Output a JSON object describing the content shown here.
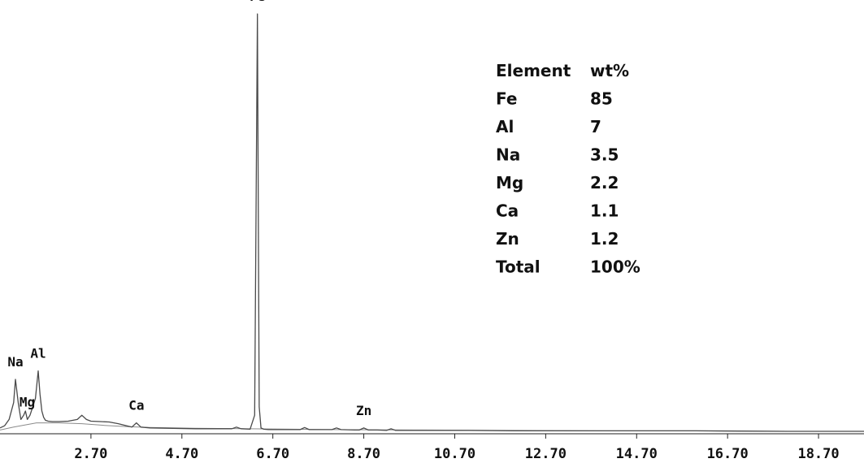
{
  "chart_data": {
    "type": "line",
    "title": "",
    "xlabel": "",
    "ylabel": "",
    "xlim": [
      0.7,
      19.7
    ],
    "ylim": [
      0,
      1
    ],
    "grid": false,
    "legend": "none",
    "x_ticks": [
      "2.70",
      "4.70",
      "6.70",
      "8.70",
      "10.70",
      "12.70",
      "14.70",
      "16.70",
      "18.70"
    ],
    "series": [
      {
        "color": "#4a4a4a",
        "x": [
          0.7,
          0.8,
          0.9,
          1.0,
          1.04,
          1.1,
          1.16,
          1.22,
          1.26,
          1.3,
          1.36,
          1.42,
          1.48,
          1.54,
          1.58,
          1.62,
          1.66,
          1.7,
          1.76,
          1.85,
          2.0,
          2.2,
          2.4,
          2.5,
          2.6,
          2.7,
          2.9,
          3.1,
          3.3,
          3.6,
          3.7,
          3.8,
          4.0,
          4.5,
          5.0,
          5.5,
          5.8,
          5.9,
          6.0,
          6.2,
          6.3,
          6.36,
          6.4,
          6.44,
          6.5,
          6.6,
          7.0,
          7.3,
          7.4,
          7.5,
          8.0,
          8.1,
          8.2,
          8.5,
          8.6,
          8.7,
          8.8,
          9.0,
          9.2,
          9.3,
          9.4,
          10.0,
          11.0,
          12.0,
          14.0,
          16.0,
          18.0,
          19.7
        ],
        "y": [
          0.01,
          0.015,
          0.03,
          0.07,
          0.125,
          0.07,
          0.03,
          0.04,
          0.05,
          0.03,
          0.04,
          0.06,
          0.08,
          0.145,
          0.09,
          0.05,
          0.035,
          0.028,
          0.026,
          0.025,
          0.025,
          0.026,
          0.03,
          0.04,
          0.03,
          0.026,
          0.025,
          0.024,
          0.02,
          0.012,
          0.022,
          0.012,
          0.01,
          0.009,
          0.008,
          0.008,
          0.008,
          0.012,
          0.008,
          0.007,
          0.04,
          0.99,
          0.06,
          0.01,
          0.007,
          0.006,
          0.006,
          0.006,
          0.011,
          0.006,
          0.006,
          0.01,
          0.006,
          0.005,
          0.005,
          0.01,
          0.005,
          0.005,
          0.004,
          0.008,
          0.004,
          0.004,
          0.004,
          0.003,
          0.003,
          0.003,
          0.002,
          0.002
        ]
      }
    ],
    "background_curve": {
      "color": "#8a8a8a",
      "x": [
        0.7,
        1.0,
        1.5,
        2.0,
        2.5,
        3.0,
        3.5,
        4.0,
        5.0,
        6.0,
        8.0,
        10.0,
        12.0,
        14.0,
        16.0,
        18.0,
        19.7
      ],
      "y": [
        0.005,
        0.012,
        0.022,
        0.022,
        0.02,
        0.016,
        0.013,
        0.011,
        0.009,
        0.008,
        0.006,
        0.005,
        0.004,
        0.003,
        0.003,
        0.002,
        0.002
      ]
    },
    "peak_labels": [
      {
        "text": "Na",
        "x": 1.04,
        "y": 0.125
      },
      {
        "text": "Mg",
        "x": 1.3,
        "y": 0.03
      },
      {
        "text": "Al",
        "x": 1.54,
        "y": 0.145
      },
      {
        "text": "Ca",
        "x": 3.7,
        "y": 0.022
      },
      {
        "text": "Fe",
        "x": 6.36,
        "y": 0.99
      },
      {
        "text": "Zn",
        "x": 8.7,
        "y": 0.01
      }
    ],
    "table": {
      "header": [
        "Element",
        "wt%"
      ],
      "rows": [
        [
          "Fe",
          "85"
        ],
        [
          "Al",
          "7"
        ],
        [
          "Na",
          "3.5"
        ],
        [
          "Mg",
          "2.2"
        ],
        [
          "Ca",
          "1.1"
        ],
        [
          "Zn",
          "1.2"
        ],
        [
          "Total",
          "100%"
        ]
      ]
    }
  }
}
